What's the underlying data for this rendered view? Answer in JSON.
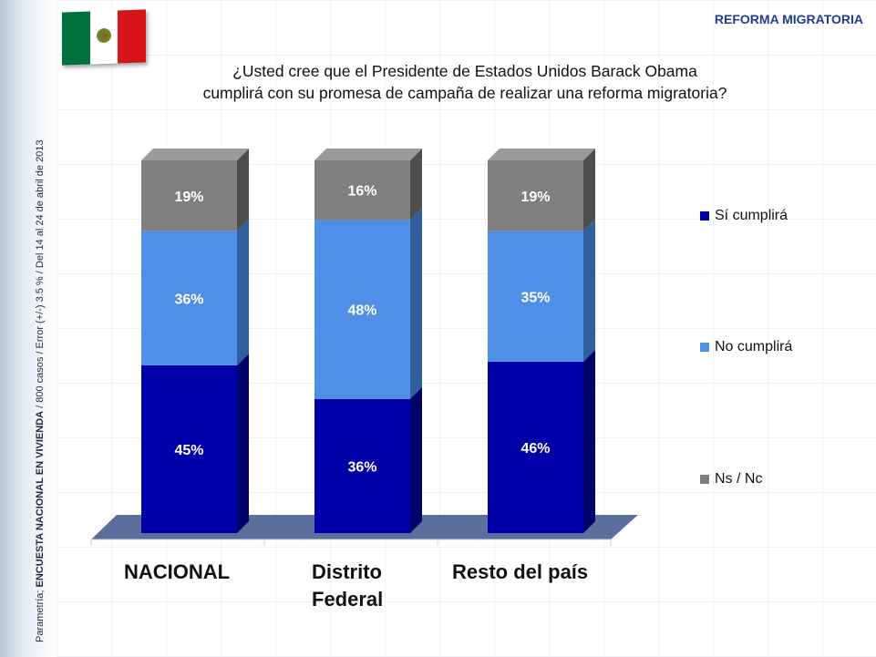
{
  "header": {
    "tag": "REFORMA MIGRATORIA",
    "question_line1": "¿Usted cree que el Presidente de Estados Unidos Barack Obama",
    "question_line2": "cumplirá con su promesa de campaña de realizar una reforma migratoria?"
  },
  "sidebar": {
    "source_prefix": "Parametría; ",
    "source_bold": "ENCUESTA NACIONAL EN VIVIENDA",
    "source_rest": " / 800 casos / Error (+/-) 3.5 % / Del 14 al 24  de abril de 2013"
  },
  "colors": {
    "si": "#0000a8",
    "no": "#4f8fe6",
    "ns": "#7f7f7f",
    "floor": "#5a6f9b"
  },
  "chart_data": {
    "type": "bar",
    "stacked": true,
    "percent": true,
    "categories": [
      "NACIONAL",
      "Distrito Federal",
      "Resto del país"
    ],
    "category_lines": [
      [
        "NACIONAL"
      ],
      [
        "Distrito",
        "Federal"
      ],
      [
        "Resto del país"
      ]
    ],
    "series": [
      {
        "name": "Sí cumplirá",
        "values": [
          45,
          36,
          46
        ],
        "labels": [
          "45%",
          "36%",
          "46%"
        ]
      },
      {
        "name": "No cumplirá",
        "values": [
          36,
          48,
          35
        ],
        "labels": [
          "36%",
          "48%",
          "35%"
        ]
      },
      {
        "name": "Ns / Nc",
        "values": [
          19,
          16,
          19
        ],
        "labels": [
          "19%",
          "16%",
          "19%"
        ]
      }
    ],
    "ylim": [
      0,
      100
    ],
    "legend_position": "right"
  }
}
